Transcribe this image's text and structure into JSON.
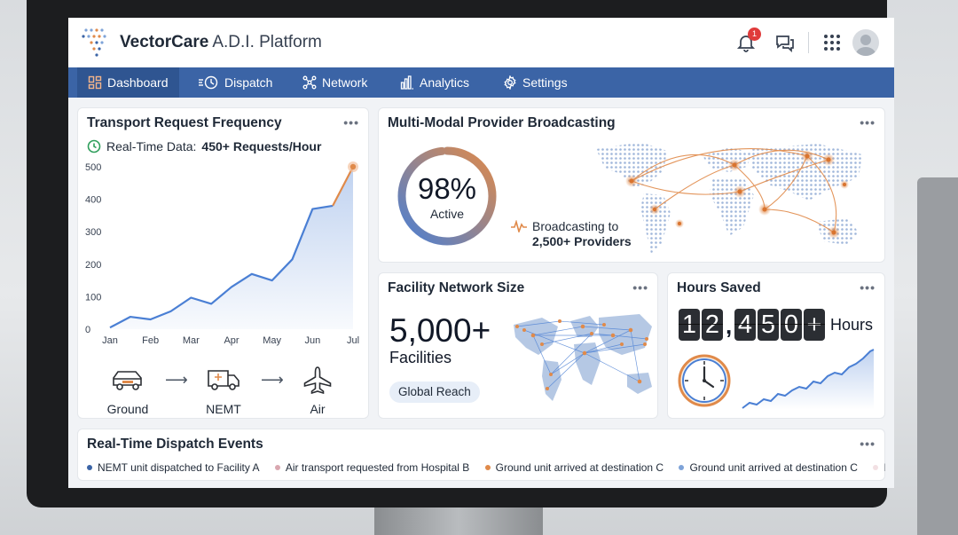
{
  "app": {
    "brand": "VectorCare",
    "subtitle": "A.D.I. Platform",
    "notification_count": "1"
  },
  "nav": [
    {
      "label": "Dashboard",
      "icon": "dashboard-icon",
      "active": true
    },
    {
      "label": "Dispatch",
      "icon": "dispatch-clock-icon"
    },
    {
      "label": "Network",
      "icon": "network-icon"
    },
    {
      "label": "Analytics",
      "icon": "analytics-icon"
    },
    {
      "label": "Settings",
      "icon": "gear-icon"
    }
  ],
  "transport": {
    "title": "Transport Request Frequency",
    "realtime_prefix": "Real-Time Data:",
    "realtime_value": "450+ Requests/Hour",
    "modes": [
      "Ground",
      "NEMT",
      "Air"
    ],
    "chart_data": {
      "type": "area",
      "x_ticks": [
        "Jan",
        "Feb",
        "Mar",
        "Apr",
        "May",
        "Jun",
        "Jul"
      ],
      "y_ticks": [
        0,
        100,
        200,
        300,
        400,
        500
      ],
      "ylim": [
        0,
        500
      ],
      "x": [
        0,
        0.5,
        1,
        1.5,
        2,
        2.5,
        3,
        3.5,
        4,
        4.5,
        5,
        5.5,
        6
      ],
      "values": [
        5,
        38,
        30,
        55,
        97,
        78,
        130,
        170,
        150,
        215,
        370,
        380,
        500
      ]
    }
  },
  "broadcast": {
    "title": "Multi-Modal Provider Broadcasting",
    "percent": "98%",
    "percent_value": 98,
    "percent_label": "Active",
    "line1": "Broadcasting to",
    "line2": "2,500+ Providers"
  },
  "facility": {
    "title": "Facility Network Size",
    "count": "5,000+",
    "unit": "Facilities",
    "tag": "Global Reach"
  },
  "hours": {
    "title": "Hours Saved",
    "digits": [
      "1",
      "2",
      "4",
      "5",
      "0",
      "+"
    ],
    "comma": ",",
    "unit": "Hours"
  },
  "events": {
    "title": "Real-Time Dispatch Events",
    "items": [
      {
        "text": "NEMT unit dispatched to Facility A",
        "color": "#3b64a6"
      },
      {
        "text": "Air transport requested from Hospital B",
        "color": "#d9a7b0"
      },
      {
        "text": "Ground unit arrived at destination C",
        "color": "#e08a4a"
      },
      {
        "text": "Ground unit arrived at destination C",
        "color": "#7ea3d8"
      },
      {
        "text": "Ha",
        "color": "#e4bcc3"
      }
    ]
  },
  "colors": {
    "accent": "#3b64a6",
    "orange": "#e08a4a",
    "line": "#4a7fd4"
  }
}
